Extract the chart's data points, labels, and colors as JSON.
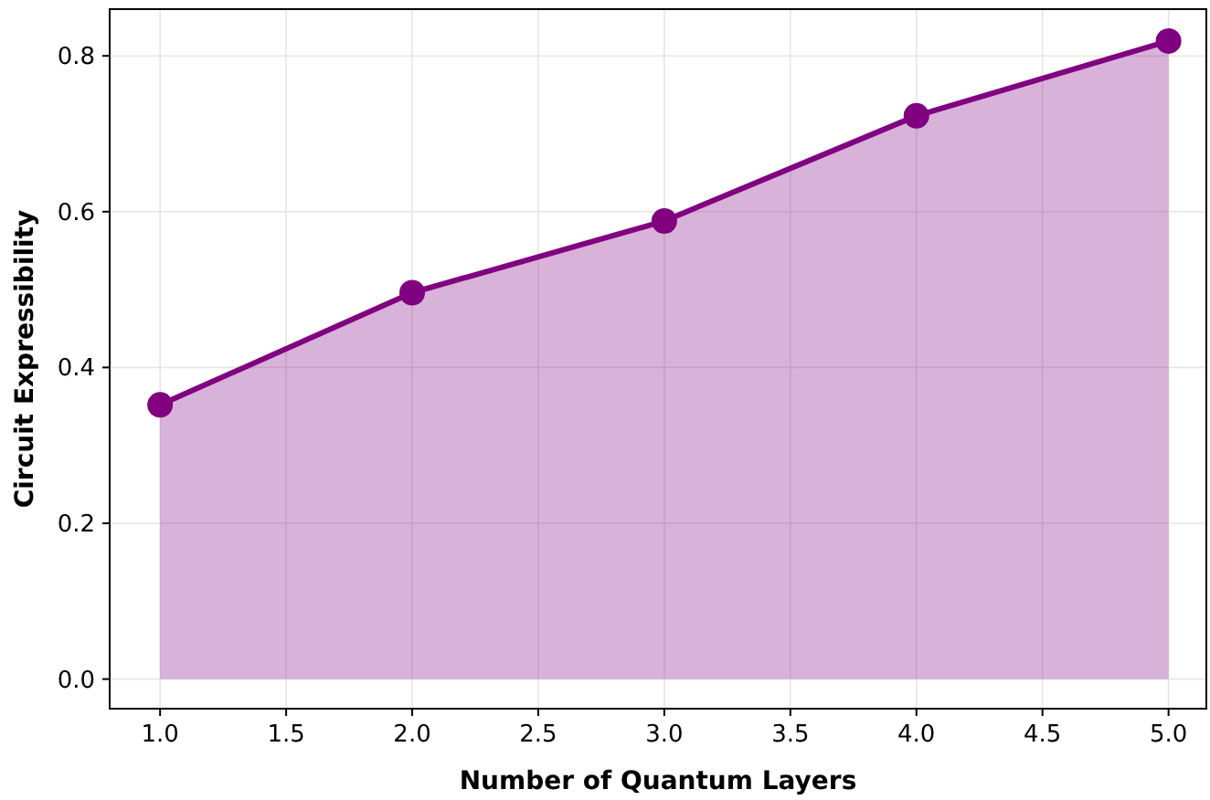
{
  "chart_data": {
    "type": "area",
    "xlabel": "Number of Quantum Layers",
    "ylabel": "Circuit Expressibility",
    "x": [
      1,
      2,
      3,
      4,
      5
    ],
    "series": [
      {
        "color": "#800080",
        "values": [
          0.352,
          0.496,
          0.588,
          0.723,
          0.819
        ]
      }
    ],
    "xlim": [
      0.8,
      5.15
    ],
    "xticks": [
      {
        "value": 1,
        "label": "1.0"
      },
      {
        "value": 1.5,
        "label": "1.5"
      },
      {
        "value": 2,
        "label": "2.0"
      },
      {
        "value": 2.5,
        "label": "2.5"
      },
      {
        "value": 3,
        "label": "3.0"
      },
      {
        "value": 3.5,
        "label": "3.5"
      },
      {
        "value": 4,
        "label": "4.0"
      },
      {
        "value": 4.5,
        "label": "4.5"
      },
      {
        "value": 5,
        "label": "5.0"
      }
    ],
    "ylim": [
      -0.038,
      0.86
    ],
    "yticks": [
      {
        "value": 0,
        "label": "0.0"
      },
      {
        "value": 0.2,
        "label": "0.2"
      },
      {
        "value": 0.4,
        "label": "0.4"
      },
      {
        "value": 0.6,
        "label": "0.6"
      },
      {
        "value": 0.8,
        "label": "0.8"
      }
    ],
    "grid": true,
    "marker": "circle",
    "line_style": "solid"
  }
}
